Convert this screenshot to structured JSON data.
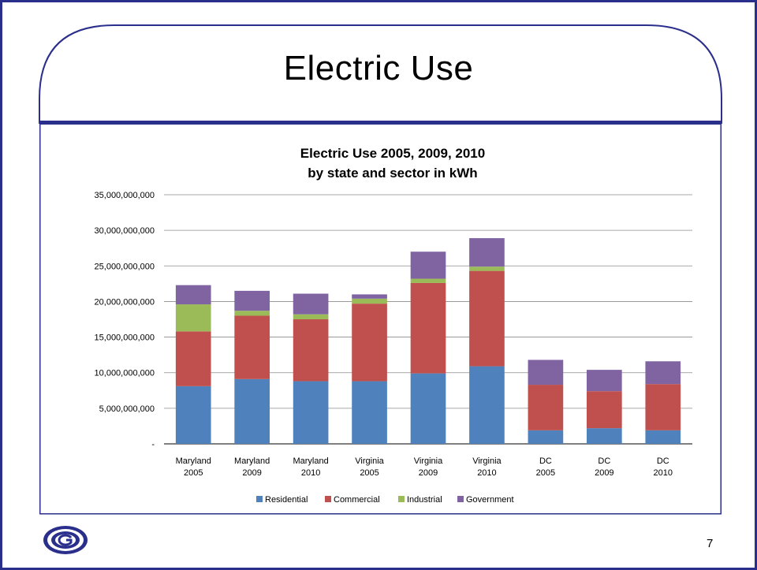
{
  "slide": {
    "title": "Electric Use",
    "page_number": "7"
  },
  "colors": {
    "frame": "#2b2f8c",
    "grid": "#8c8c8c"
  },
  "chart_data": {
    "type": "bar",
    "stacked": true,
    "title": [
      "Electric Use 2005, 2009, 2010",
      "by state and sector in kWh"
    ],
    "xlabel": "",
    "ylabel": "",
    "ylim": [
      0,
      35000000000
    ],
    "yticks": [
      0,
      5000000000,
      10000000000,
      15000000000,
      20000000000,
      25000000000,
      30000000000,
      35000000000
    ],
    "ytick_labels": [
      "-",
      "5,000,000,000",
      "10,000,000,000",
      "15,000,000,000",
      "20,000,000,000",
      "25,000,000,000",
      "30,000,000,000",
      "35,000,000,000"
    ],
    "grid": true,
    "legend_position": "bottom",
    "categories": [
      [
        "Maryland",
        "2005"
      ],
      [
        "Maryland",
        "2009"
      ],
      [
        "Maryland",
        "2010"
      ],
      [
        "Virginia",
        "2005"
      ],
      [
        "Virginia",
        "2009"
      ],
      [
        "Virginia",
        "2010"
      ],
      [
        "DC",
        "2005"
      ],
      [
        "DC",
        "2009"
      ],
      [
        "DC",
        "2010"
      ]
    ],
    "series": [
      {
        "name": "Residential",
        "color": "#4f81bd",
        "values": [
          8100000000,
          9100000000,
          8800000000,
          8800000000,
          9900000000,
          10900000000,
          1900000000,
          2200000000,
          1900000000
        ]
      },
      {
        "name": "Commercial",
        "color": "#c0504d",
        "values": [
          7700000000,
          8900000000,
          8700000000,
          10900000000,
          12700000000,
          13400000000,
          6400000000,
          5200000000,
          6500000000
        ]
      },
      {
        "name": "Industrial",
        "color": "#9bbb59",
        "values": [
          3800000000,
          700000000,
          700000000,
          700000000,
          600000000,
          600000000,
          0,
          0,
          0
        ]
      },
      {
        "name": "Government",
        "color": "#8064a2",
        "values": [
          2700000000,
          2800000000,
          2900000000,
          600000000,
          3800000000,
          4000000000,
          3500000000,
          3000000000,
          3200000000
        ]
      }
    ]
  }
}
